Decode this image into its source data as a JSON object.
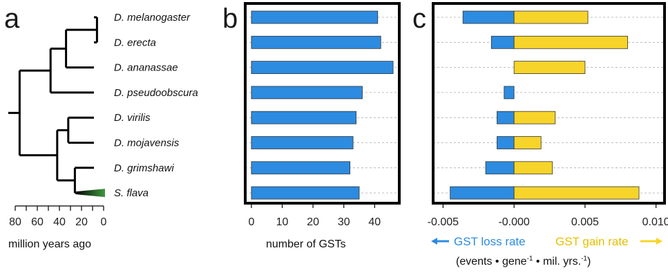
{
  "panels": {
    "a": "a",
    "b": "b",
    "c": "c"
  },
  "colors": {
    "loss": "#2d8be0",
    "gain": "#f7d42a",
    "highlight_species": "#2a8c2a",
    "tree": "#000000",
    "grid": "#aaaaaa"
  },
  "chart_data": [
    {
      "type": "tree",
      "panel": "a",
      "xlabel": "million years ago",
      "xticks": [
        80,
        70,
        60,
        50,
        40,
        30,
        20,
        10,
        0
      ],
      "xticklabels": [
        "80",
        "60",
        "40",
        "20",
        "0"
      ],
      "xlim": [
        85,
        0
      ],
      "leaves": [
        "D. melanogaster",
        "D. erecta",
        "D. ananassae",
        "D. pseudoobscura",
        "D. virilis",
        "D. mojavensis",
        "D. grimshawi",
        "S. flava"
      ],
      "highlighted_leaf": "S. flava",
      "nodes": [
        {
          "name": "mel-ere",
          "age": 6,
          "children": [
            "D. melanogaster",
            "D. erecta"
          ]
        },
        {
          "name": "mel-ana",
          "age": 34,
          "children": [
            "mel-ere",
            "D. ananassae"
          ]
        },
        {
          "name": "soph",
          "age": 48,
          "children": [
            "mel-ana",
            "D. pseudoobscura"
          ]
        },
        {
          "name": "vir-moj",
          "age": 32,
          "children": [
            "D. virilis",
            "D. mojavensis"
          ]
        },
        {
          "name": "gri-fla",
          "age": 26,
          "children": [
            "D. grimshawi",
            "S. flava"
          ]
        },
        {
          "name": "drosophila",
          "age": 42,
          "children": [
            "vir-moj",
            "gri-fla"
          ]
        },
        {
          "name": "root",
          "age": 76,
          "children": [
            "soph",
            "drosophila"
          ]
        }
      ]
    },
    {
      "type": "bar",
      "panel": "b",
      "orientation": "horizontal",
      "categories": [
        "D. melanogaster",
        "D. erecta",
        "D. ananassae",
        "D. pseudoobscura",
        "D. virilis",
        "D. mojavensis",
        "D. grimshawi",
        "S. flava"
      ],
      "values": [
        41,
        42,
        46,
        36,
        34,
        33,
        32,
        35
      ],
      "xlabel": "number of GSTs",
      "xlim": [
        -2,
        48
      ],
      "xticks": [
        "0",
        "10",
        "20",
        "30",
        "40"
      ],
      "grid": "horizontal dashed"
    },
    {
      "type": "bar",
      "panel": "c",
      "orientation": "horizontal",
      "stacked": "diverging",
      "categories": [
        "D. melanogaster",
        "D. erecta",
        "D. ananassae",
        "D. pseudoobscura",
        "D. virilis",
        "D. mojavensis",
        "D. grimshawi",
        "S. flava"
      ],
      "series": [
        {
          "name": "GST loss rate",
          "values": [
            -0.0036,
            -0.0016,
            0.0,
            -0.0007,
            -0.0012,
            -0.0012,
            -0.002,
            -0.0045
          ]
        },
        {
          "name": "GST gain rate",
          "values": [
            0.0052,
            0.008,
            0.005,
            0.0,
            0.0029,
            0.0019,
            0.0027,
            0.0088
          ]
        }
      ],
      "xlim": [
        -0.0057,
        0.0106
      ],
      "xticks": [
        "-0.005",
        "-0.000",
        "0.005",
        "0.010"
      ],
      "xlabel": "(events • gene-1 • mil. yrs.-1)",
      "xlabel_parts": {
        "a": "(events • gene",
        "b": "-1",
        "c": " • mil. yrs.",
        "d": "-1",
        "e": ")"
      },
      "grid": "horizontal dashed"
    }
  ]
}
